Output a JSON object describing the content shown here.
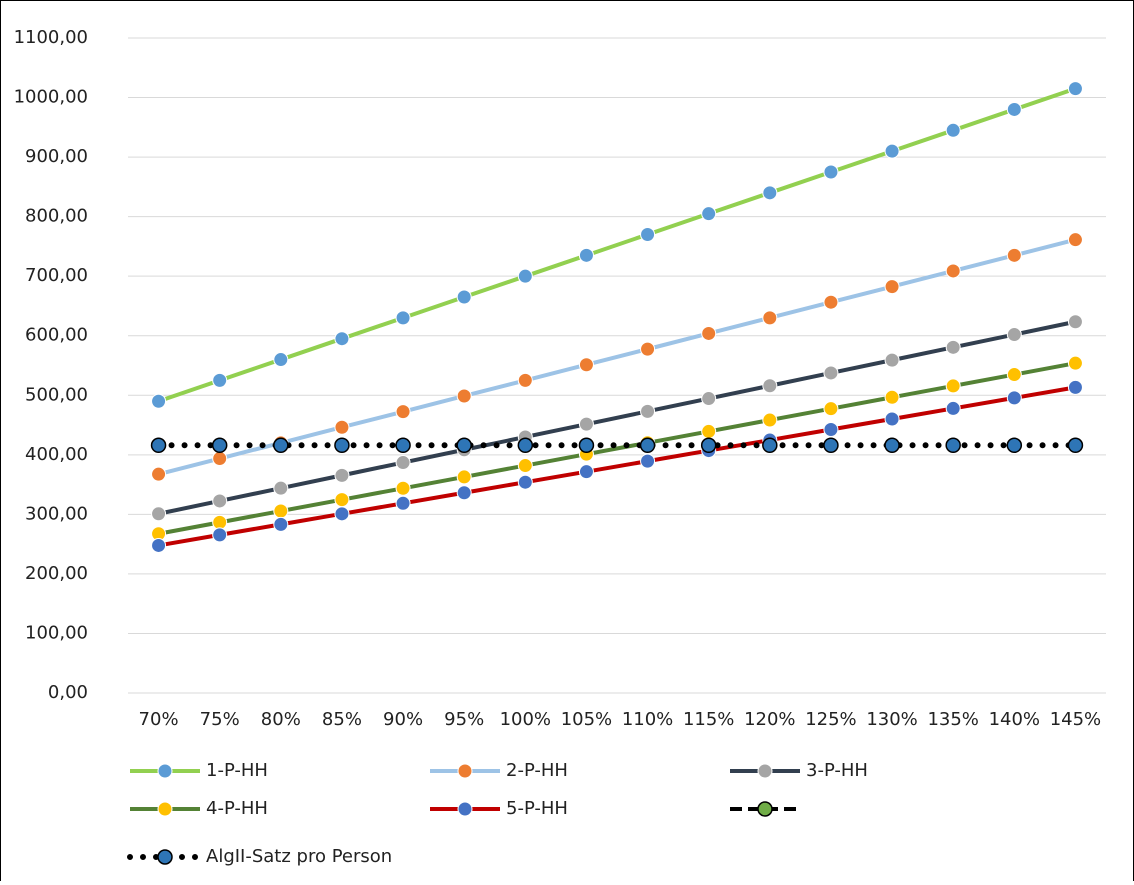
{
  "chart_data": {
    "type": "line",
    "categories": [
      "70%",
      "75%",
      "80%",
      "85%",
      "90%",
      "95%",
      "100%",
      "105%",
      "110%",
      "115%",
      "120%",
      "125%",
      "130%",
      "135%",
      "140%",
      "145%"
    ],
    "series": [
      {
        "name": "1-P-HH",
        "line_color": "#92d050",
        "marker_color": "#5b9bd5",
        "line_style": "solid",
        "values": [
          490,
          525,
          560,
          595,
          630,
          665,
          700,
          735,
          770,
          805,
          840,
          875,
          910,
          945,
          980,
          1015
        ]
      },
      {
        "name": "2-P-HH",
        "line_color": "#9dc3e6",
        "marker_color": "#ed7d31",
        "line_style": "solid",
        "values": [
          367.5,
          393.8,
          420,
          446.3,
          472.5,
          498.8,
          525,
          551.3,
          577.5,
          603.8,
          630,
          656.3,
          682.5,
          708.8,
          735,
          761.3
        ]
      },
      {
        "name": "3-P-HH",
        "line_color": "#323f4f",
        "marker_color": "#a5a5a5",
        "line_style": "solid",
        "values": [
          301,
          322.5,
          344,
          365.5,
          387,
          408.5,
          430,
          451.5,
          473,
          494.5,
          516,
          537.5,
          559,
          580.5,
          602,
          623.5
        ]
      },
      {
        "name": "4-P-HH",
        "line_color": "#548235",
        "marker_color": "#ffc000",
        "line_style": "solid",
        "values": [
          267.4,
          286.5,
          305.6,
          324.7,
          343.8,
          362.9,
          382,
          401.1,
          420.2,
          439.3,
          458.4,
          477.5,
          496.6,
          515.7,
          534.8,
          553.9
        ]
      },
      {
        "name": "5-P-HH",
        "line_color": "#c00000",
        "marker_color": "#4472c4",
        "line_style": "solid",
        "values": [
          247.8,
          265.5,
          283.2,
          300.9,
          318.6,
          336.3,
          354,
          371.7,
          389.4,
          407.1,
          424.8,
          442.5,
          460.2,
          477.9,
          495.6,
          513.3
        ]
      },
      {
        "name": "AlgII-Satz pro Person",
        "line_color": "#000000",
        "marker_color": "#2e75b6",
        "line_style": "dotted",
        "values": [
          416,
          416,
          416,
          416,
          416,
          416,
          416,
          416,
          416,
          416,
          416,
          416,
          416,
          416,
          416,
          416
        ]
      }
    ],
    "ylim": [
      0,
      1100
    ],
    "yticks": [
      {
        "value": 0,
        "label": "0,00"
      },
      {
        "value": 100,
        "label": "100,00"
      },
      {
        "value": 200,
        "label": "200,00"
      },
      {
        "value": 300,
        "label": "300,00"
      },
      {
        "value": 400,
        "label": "400,00"
      },
      {
        "value": 500,
        "label": "500,00"
      },
      {
        "value": 600,
        "label": "600,00"
      },
      {
        "value": 700,
        "label": "700,00"
      },
      {
        "value": 800,
        "label": "800,00"
      },
      {
        "value": 900,
        "label": "900,00"
      },
      {
        "value": 1000,
        "label": "1000,00"
      },
      {
        "value": 1100,
        "label": "1100,00"
      }
    ],
    "grid": true
  }
}
